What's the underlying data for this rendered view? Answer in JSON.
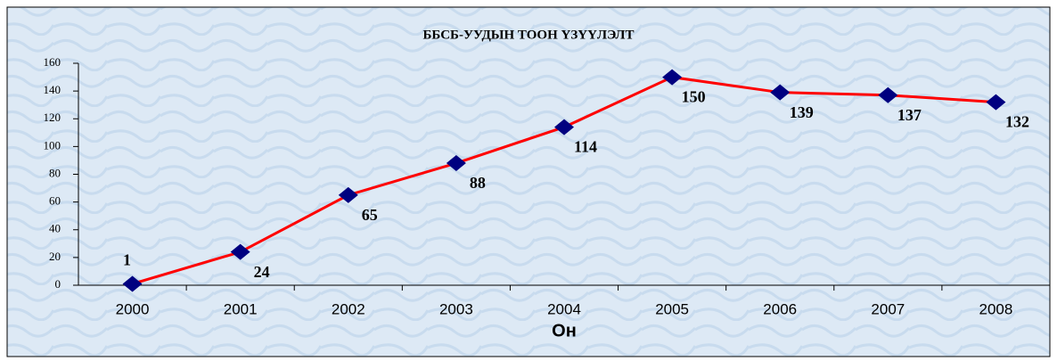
{
  "chart_data": {
    "type": "line",
    "title": "ББСБ-УУДЫН ТООН ҮЗҮҮЛЭЛТ",
    "x_label": "Он",
    "categories": [
      "2000",
      "2001",
      "2002",
      "2003",
      "2004",
      "2005",
      "2006",
      "2007",
      "2008"
    ],
    "series": [
      {
        "name": "ББСБ",
        "color": "#ff0000",
        "marker_color": "#000080",
        "values": [
          1,
          24,
          65,
          88,
          114,
          150,
          139,
          137,
          132
        ]
      }
    ],
    "ylim": [
      0,
      160
    ],
    "yticks": [
      0,
      20,
      40,
      60,
      80,
      100,
      120,
      140,
      160
    ],
    "grid": false,
    "legend": false
  }
}
